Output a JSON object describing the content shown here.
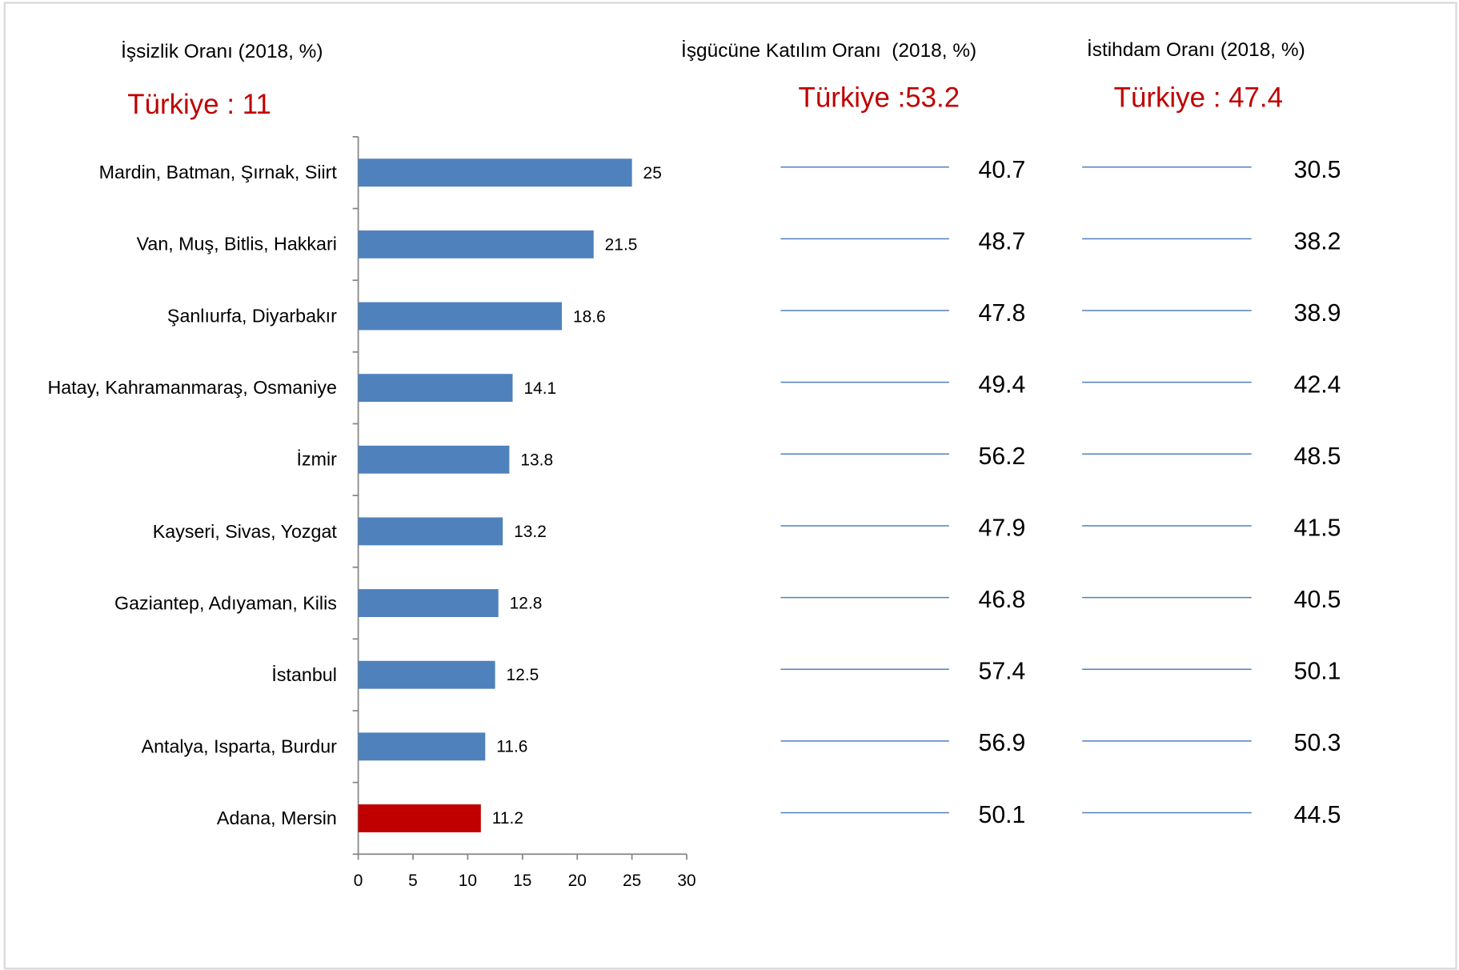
{
  "chart_data": {
    "type": "bar",
    "orientation": "horizontal",
    "title": "İşsizlik Oranı (2018, %)",
    "annotation": "Türkiye : 11",
    "categories": [
      "Mardin, Batman, Şırnak, Siirt",
      "Van, Muş, Bitlis, Hakkari",
      "Şanlıurfa, Diyarbakır",
      "Hatay, Kahramanmaraş, Osmaniye",
      "İzmir",
      "Kayseri, Sivas, Yozgat",
      "Gaziantep, Adıyaman, Kilis",
      "İstanbul",
      "Antalya, Isparta, Burdur",
      "Adana, Mersin"
    ],
    "values": [
      25,
      21.5,
      18.6,
      14.1,
      13.8,
      13.2,
      12.8,
      12.5,
      11.6,
      11.2
    ],
    "colors": [
      "#4f81bd",
      "#4f81bd",
      "#4f81bd",
      "#4f81bd",
      "#4f81bd",
      "#4f81bd",
      "#4f81bd",
      "#4f81bd",
      "#4f81bd",
      "#c00000"
    ],
    "xlim": [
      0,
      30
    ],
    "xticks": [
      0,
      5,
      10,
      15,
      20,
      25,
      30
    ]
  },
  "columns": [
    {
      "title": "İşgücüne Katılım Oranı  (2018, %)",
      "annotation": "Türkiye :53.2",
      "values": [
        40.7,
        48.7,
        47.8,
        49.4,
        56.2,
        47.9,
        46.8,
        57.4,
        56.9,
        50.1
      ]
    },
    {
      "title": "İstihdam Oranı (2018, %)",
      "annotation": "Türkiye : 47.4",
      "values": [
        30.5,
        38.2,
        38.9,
        42.4,
        48.5,
        41.5,
        40.5,
        50.1,
        50.3,
        44.5
      ]
    }
  ]
}
